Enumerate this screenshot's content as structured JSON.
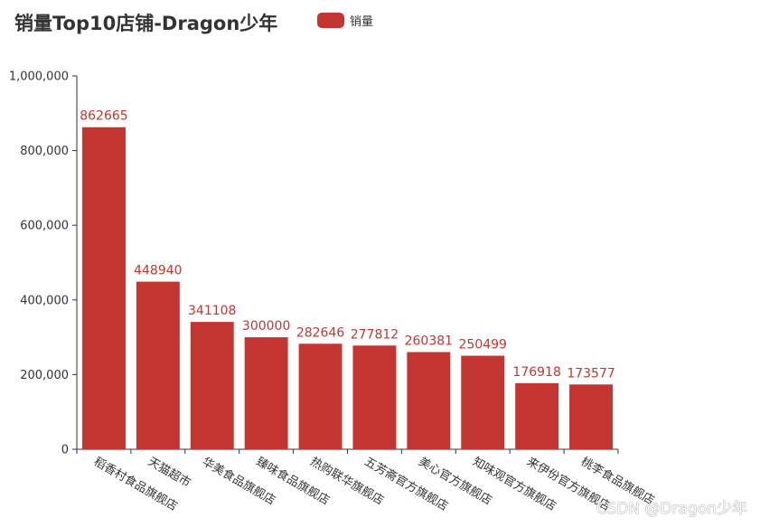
{
  "title": "销量Top10店铺-Dragon少年",
  "legend": {
    "label": "销量",
    "color": "#c23531"
  },
  "watermark": "CSDN @Dragon少年",
  "chart_data": {
    "type": "bar",
    "title": "销量Top10店铺-Dragon少年",
    "categories": [
      "稻香村食品旗舰店",
      "天猫超市",
      "华美食品旗舰店",
      "臻味食品旗舰店",
      "热购联华旗舰店",
      "五芳斋官方旗舰店",
      "美心官方旗舰店",
      "知味观官方旗舰店",
      "来伊份官方旗舰店",
      "桃李食品旗舰店"
    ],
    "series": [
      {
        "name": "销量",
        "color": "#c23531",
        "values": [
          862665,
          448940,
          341108,
          300000,
          282646,
          277812,
          260381,
          250499,
          176918,
          173577
        ]
      }
    ],
    "ylim": [
      0,
      1000000
    ],
    "yticks": [
      0,
      200000,
      400000,
      600000,
      800000,
      1000000
    ],
    "ytick_labels": [
      "0",
      "200,000",
      "400,000",
      "600,000",
      "800,000",
      "1,000,000"
    ],
    "xlabel": "",
    "ylabel": "",
    "grid": false,
    "legend_position": "top"
  }
}
